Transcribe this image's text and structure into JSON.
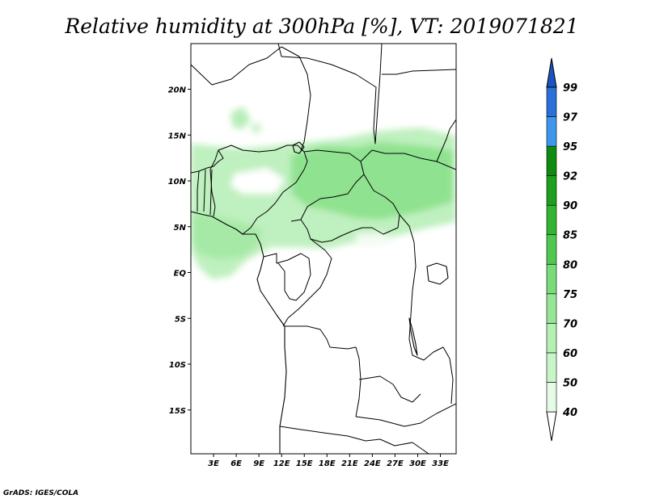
{
  "title": "Relative humidity at 300hPa [%], VT: 2019071821",
  "credit": "GrADS: IGES/COLA",
  "chart_data": {
    "type": "map",
    "title": "Relative humidity at 300hPa [%], VT: 2019071821",
    "variable": "Relative humidity",
    "level": "300hPa",
    "units": "%",
    "valid_time": "2019071821",
    "lon_range": [
      0,
      35
    ],
    "lat_range": [
      -20,
      25
    ],
    "x_tick_labels": [
      "3E",
      "6E",
      "9E",
      "12E",
      "15E",
      "18E",
      "21E",
      "24E",
      "27E",
      "30E",
      "33E"
    ],
    "y_tick_labels": [
      "20N",
      "15N",
      "10N",
      "5N",
      "EQ",
      "5S",
      "10S",
      "15S"
    ],
    "colorbar": {
      "levels": [
        "40",
        "50",
        "60",
        "70",
        "75",
        "80",
        "85",
        "90",
        "92",
        "95",
        "97",
        "99"
      ],
      "colors": [
        "#ffffff",
        "#e6fbe6",
        "#c8f5c8",
        "#b4f0b4",
        "#96e696",
        "#78dc78",
        "#50c850",
        "#32b432",
        "#1ea01e",
        "#0f8c0f",
        "#3e97ec",
        "#2a70d8",
        "#1a54c0"
      ],
      "ends": "triangular"
    }
  }
}
